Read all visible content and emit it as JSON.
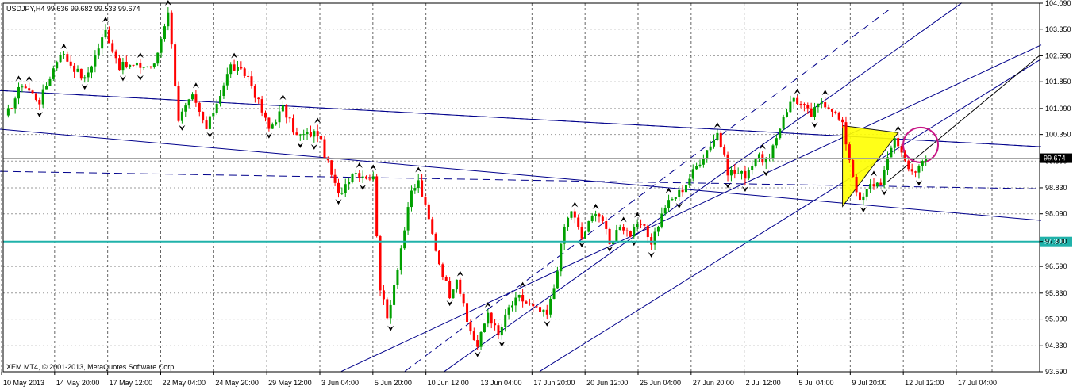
{
  "chart_data": {
    "type": "candlestick",
    "symbol_header": "USDJPY,H4  99.636 99.682 99.533 99.674",
    "footer": "XEM MT4, © 2001-2013, MetaQuotes Software Corp.",
    "ylim": [
      93.59,
      104.09
    ],
    "y_ticks": [
      "104.090",
      "103.350",
      "102.590",
      "101.850",
      "101.090",
      "100.350",
      "99.590",
      "98.830",
      "98.090",
      "97.300",
      "96.590",
      "95.830",
      "95.090",
      "94.330",
      "93.590"
    ],
    "x_ticks": [
      "10 May 2013",
      "14 May 20:00",
      "17 May 12:00",
      "22 May 04:00",
      "24 May 20:00",
      "29 May 12:00",
      "3 Jun 04:00",
      "5 Jun 20:00",
      "10 Jun 12:00",
      "13 Jun 04:00",
      "17 Jun 20:00",
      "20 Jun 12:00",
      "25 Jun 04:00",
      "27 Jun 20:00",
      "2 Jul 12:00",
      "5 Jul 04:00",
      "9 Jul 20:00",
      "12 Jul 12:00",
      "17 Jul 04:00"
    ],
    "bid_price": "99.674",
    "level_price": "97.300",
    "bid_value": 99.674,
    "level_value": 97.3,
    "colors": {
      "bull": "#00a000",
      "bear": "#ff0000",
      "channel": "#00008b",
      "level": "#20b2aa",
      "bid_tag": "#000000",
      "triangle": "#ffff00",
      "circle": "#c71585",
      "grid": "#808080"
    },
    "waypoints": [
      [
        0,
        100.8
      ],
      [
        5,
        101.8
      ],
      [
        10,
        101.3
      ],
      [
        16,
        102.7
      ],
      [
        23,
        101.9
      ],
      [
        29,
        103.3
      ],
      [
        33,
        102.3
      ],
      [
        43,
        102.3
      ],
      [
        47,
        103.9
      ],
      [
        50,
        100.8
      ],
      [
        54,
        101.4
      ],
      [
        58,
        100.5
      ],
      [
        65,
        102.3
      ],
      [
        70,
        102.0
      ],
      [
        76,
        100.5
      ],
      [
        80,
        101.1
      ],
      [
        84,
        100.3
      ],
      [
        90,
        100.4
      ],
      [
        96,
        98.6
      ],
      [
        100,
        99.3
      ],
      [
        106,
        99.1
      ],
      [
        108,
        96.0
      ],
      [
        110,
        95.1
      ],
      [
        113,
        96.6
      ],
      [
        117,
        98.7
      ],
      [
        119,
        99.0
      ],
      [
        122,
        97.9
      ],
      [
        125,
        96.7
      ],
      [
        128,
        95.8
      ],
      [
        130,
        96.3
      ],
      [
        133,
        95.0
      ],
      [
        136,
        94.3
      ],
      [
        139,
        95.3
      ],
      [
        142,
        94.6
      ],
      [
        145,
        95.4
      ],
      [
        148,
        95.7
      ],
      [
        152,
        95.4
      ],
      [
        156,
        95.2
      ],
      [
        158,
        96.0
      ],
      [
        161,
        97.7
      ],
      [
        163,
        98.2
      ],
      [
        166,
        97.4
      ],
      [
        170,
        98.2
      ],
      [
        172,
        97.9
      ],
      [
        174,
        97.2
      ],
      [
        177,
        97.8
      ],
      [
        180,
        97.5
      ],
      [
        183,
        97.8
      ],
      [
        186,
        97.3
      ],
      [
        190,
        98.3
      ],
      [
        195,
        98.8
      ],
      [
        200,
        99.6
      ],
      [
        205,
        100.4
      ],
      [
        208,
        99.3
      ],
      [
        213,
        99.2
      ],
      [
        216,
        99.7
      ],
      [
        220,
        99.6
      ],
      [
        224,
        100.9
      ],
      [
        227,
        101.4
      ],
      [
        232,
        100.9
      ],
      [
        235,
        101.3
      ],
      [
        238,
        101.1
      ],
      [
        241,
        100.6
      ],
      [
        244,
        99.2
      ],
      [
        246,
        98.4
      ],
      [
        249,
        98.9
      ],
      [
        252,
        99.0
      ],
      [
        254,
        99.6
      ],
      [
        256,
        100.3
      ],
      [
        259,
        99.6
      ],
      [
        262,
        99.2
      ],
      [
        264,
        99.6
      ],
      [
        265,
        99.67
      ]
    ],
    "waypoint_noise": 0.12,
    "waypoint_seed": 17,
    "lines": [
      {
        "kind": "solid",
        "x0": 0,
        "y0": 101.6,
        "x1": 1312,
        "y1": 100.0
      },
      {
        "kind": "dashed",
        "x0": 0,
        "y0": 101.6,
        "x1": 1312,
        "y1": 100.0
      },
      {
        "kind": "solid",
        "x0": 0,
        "y0": 100.5,
        "x1": 1312,
        "y1": 97.9
      },
      {
        "kind": "dashed",
        "x0": 0,
        "y0": 99.3,
        "x1": 1312,
        "y1": 98.8
      },
      {
        "kind": "solid",
        "x0": 430,
        "y0": 93.6,
        "x1": 1312,
        "y1": 102.9
      },
      {
        "kind": "dashed",
        "x0": 510,
        "y0": 93.6,
        "x1": 1120,
        "y1": 103.9
      },
      {
        "kind": "solid",
        "x0": 560,
        "y0": 93.6,
        "x1": 1212,
        "y1": 104.1
      },
      {
        "kind": "solid",
        "x0": 680,
        "y0": 93.6,
        "x1": 1312,
        "y1": 102.5
      }
    ]
  }
}
